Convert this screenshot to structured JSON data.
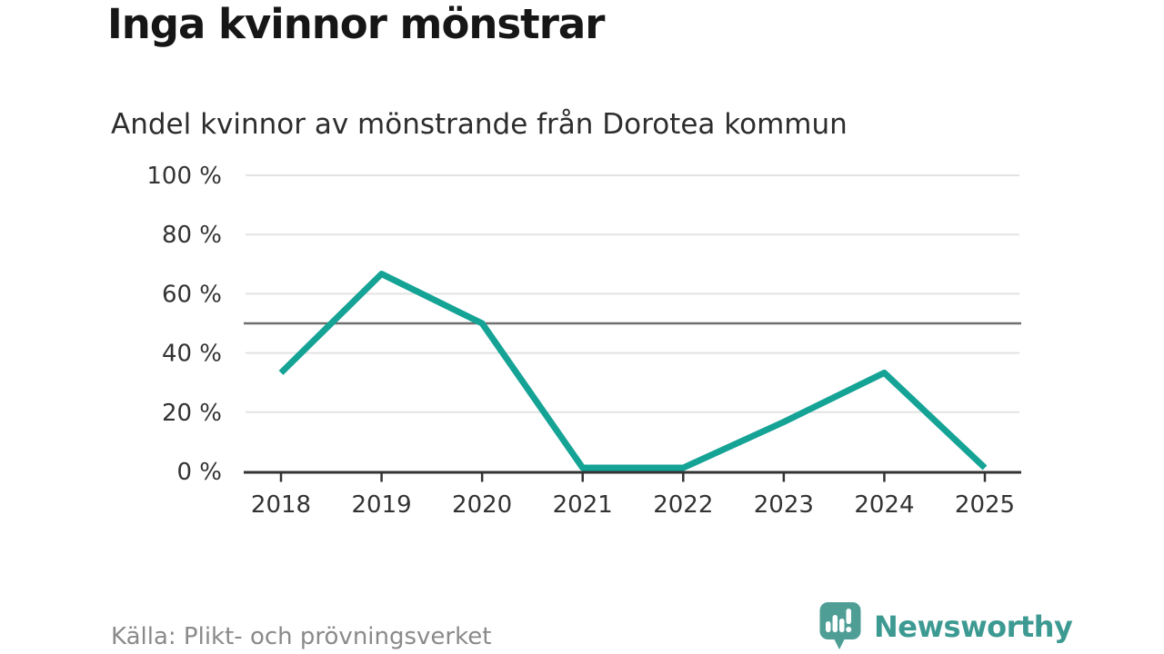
{
  "header": {
    "title": "Inga kvinnor mönstrar",
    "subtitle": "Andel kvinnor av mönstrande från Dorotea kommun"
  },
  "chart_data": {
    "type": "line",
    "title": "Inga kvinnor mönstrar",
    "subtitle": "Andel kvinnor av mönstrande från Dorotea kommun",
    "categories": [
      "2018",
      "2019",
      "2020",
      "2021",
      "2022",
      "2023",
      "2024",
      "2025"
    ],
    "values": [
      33.3,
      66.7,
      50,
      0,
      0,
      16.7,
      33.3,
      0
    ],
    "series_name": "Andel kvinnor av mönstrande",
    "unit": "%",
    "xlabel": "",
    "ylabel": "",
    "ylim": [
      0,
      100
    ],
    "yticks": [
      0,
      20,
      40,
      60,
      80,
      100
    ],
    "ytick_labels": [
      "0 %",
      "20 %",
      "40 %",
      "60 %",
      "80 %",
      "100 %"
    ],
    "reference_line": 50,
    "grid": true,
    "legend_position": "none",
    "line_color": "#15a396",
    "reference_line_color": "#6f6f6f",
    "grid_color": "#e3e3e3",
    "axis_color": "#333333",
    "tick_label_color": "#333333"
  },
  "footer": {
    "source": "Källa: Plikt- och prövningsverket",
    "logo_text": "Newsworthy",
    "logo_text_color": "#3d9a92",
    "logo_icon_color": "#4e9e96",
    "logo_icon": "speech-bubble-bar-chart-exclamation"
  }
}
